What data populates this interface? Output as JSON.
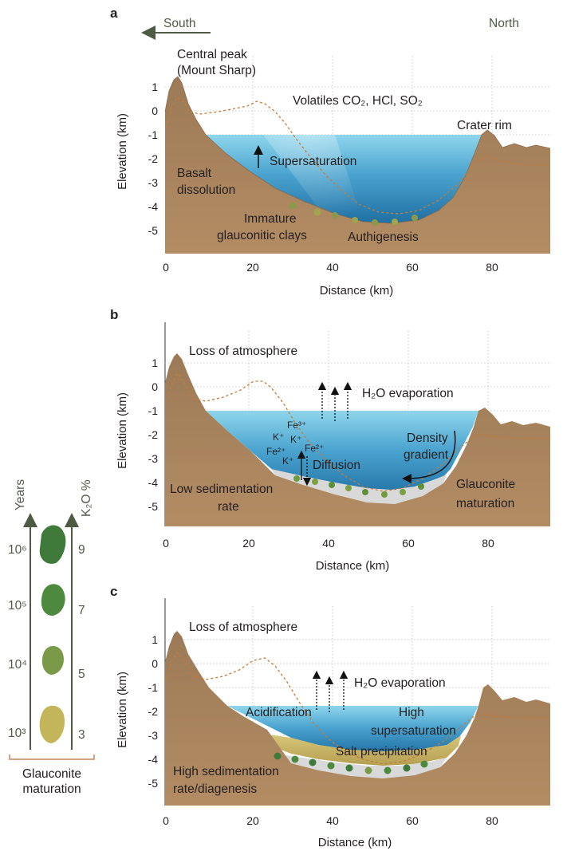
{
  "panels": {
    "a": {
      "letter": "a",
      "direction_south": "South",
      "direction_north": "North",
      "peak_label_1": "Central peak",
      "peak_label_2": "(Mount Sharp)",
      "volatiles": "Volatiles CO₂, HCl, SO₂",
      "crater_rim": "Crater rim",
      "supersaturation": "Supersaturation",
      "basalt_1": "Basalt",
      "basalt_2": "dissolution",
      "immature_1": "Immature",
      "immature_2": "glauconitic clays",
      "authigenesis": "Authigenesis"
    },
    "b": {
      "letter": "b",
      "loss": "Loss of atmosphere",
      "evaporation": "H₂O evaporation",
      "density_1": "Density",
      "density_2": "gradient",
      "diffusion": "Diffusion",
      "low_sed_1": "Low sedimentation",
      "low_sed_2": "rate",
      "glauconite_mat_1": "Glauconite",
      "glauconite_mat_2": "maturation",
      "ion_fe3": "Fe³⁺",
      "ion_k1": "K⁺",
      "ion_k2": "K⁺",
      "ion_fe2a": "Fe²⁺",
      "ion_fe2b": "Fe²⁺",
      "ion_k3": "K⁺"
    },
    "c": {
      "letter": "c",
      "loss": "Loss of atmosphere",
      "evaporation": "H₂O evaporation",
      "acidification": "Acidification",
      "high_super_1": "High",
      "high_super_2": "supersaturation",
      "salt": "Salt precipitation",
      "high_sed_1": "High sedimentation",
      "high_sed_2": "rate/diagenesis"
    }
  },
  "axes": {
    "ylabel": "Elevation (km)",
    "xlabel": "Distance (km)",
    "y_ticks": [
      "1",
      "0",
      "-1",
      "-2",
      "-3",
      "-4",
      "-5"
    ],
    "x_ticks": [
      "0",
      "20",
      "40",
      "60",
      "80"
    ]
  },
  "sidebar": {
    "years_label": "Years",
    "k2o_label": "K₂O %",
    "years": [
      "10⁶",
      "10⁵",
      "10⁴",
      "10³"
    ],
    "k2o": [
      "9",
      "7",
      "5",
      "3"
    ],
    "grain_colors": [
      "#3f7a3a",
      "#4e8a3d",
      "#7a9a4a",
      "#c3b55a"
    ],
    "caption_1": "Glauconite",
    "caption_2": "maturation"
  },
  "colors": {
    "rock": "#a9835e",
    "water_top": "#8fd6ec",
    "water_bottom": "#1f6fa3",
    "sediment_light": "#d8d8d8",
    "salt_layer": "#c8b56a",
    "accent_green": "#4f5a44"
  }
}
